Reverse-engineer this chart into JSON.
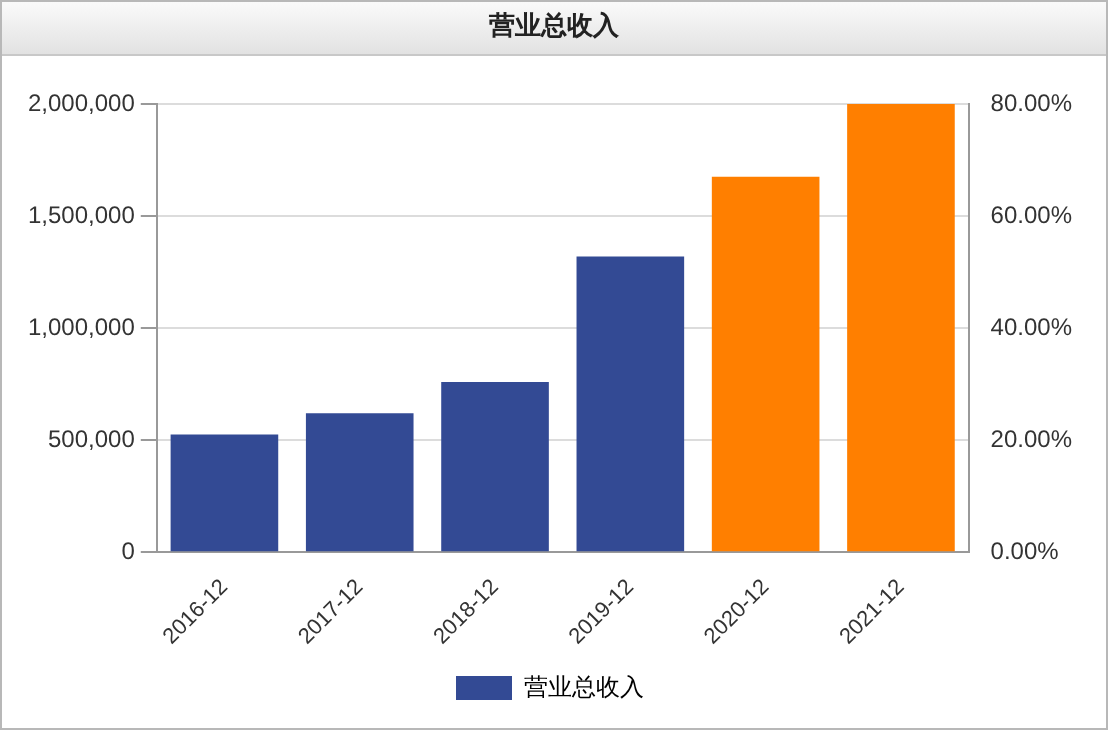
{
  "chart_data": {
    "type": "bar",
    "title": "营业总收入",
    "categories": [
      "2016-12",
      "2017-12",
      "2018-12",
      "2019-12",
      "2020-12",
      "2021-12"
    ],
    "series": [
      {
        "name": "营业总收入",
        "color": "#334a94",
        "colors": [
          "#334a94",
          "#334a94",
          "#334a94",
          "#334a94",
          "#ff7f00",
          "#ff7f00"
        ],
        "values": [
          525000,
          620000,
          760000,
          1320000,
          1675000,
          2000000
        ]
      }
    ],
    "ylim": [
      0,
      2000000
    ],
    "yticks": [
      {
        "value": 0,
        "label": "0"
      },
      {
        "value": 500000,
        "label": "500,000"
      },
      {
        "value": 1000000,
        "label": "1,000,000"
      },
      {
        "value": 1500000,
        "label": "1,500,000"
      },
      {
        "value": 2000000,
        "label": "2,000,000"
      }
    ],
    "y2lim": [
      0,
      80
    ],
    "y2ticks": [
      {
        "value": 0,
        "label": "0.00%"
      },
      {
        "value": 20,
        "label": "20.00%"
      },
      {
        "value": 40,
        "label": "40.00%"
      },
      {
        "value": 60,
        "label": "60.00%"
      },
      {
        "value": 80,
        "label": "80.00%"
      }
    ],
    "grid": "y",
    "legend": "bottom"
  }
}
